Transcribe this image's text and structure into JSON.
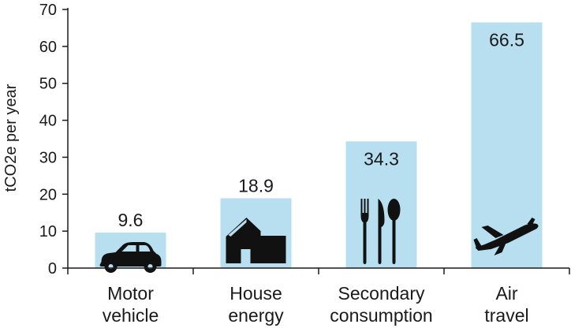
{
  "chart_data": {
    "type": "bar",
    "categories": [
      [
        "Motor",
        "vehicle"
      ],
      [
        "House",
        "energy"
      ],
      [
        "Secondary",
        "consumption"
      ],
      [
        "Air",
        "travel"
      ]
    ],
    "values": [
      9.6,
      18.9,
      34.3,
      66.5
    ],
    "value_labels": [
      "9.6",
      "18.9",
      "34.3",
      "66.5"
    ],
    "icons": [
      "car-icon",
      "house-icon",
      "cutlery-icon",
      "airplane-icon"
    ],
    "title": "",
    "xlabel": "",
    "ylabel": "tCO2e per year",
    "ylim": [
      0,
      70
    ],
    "yticks": [
      0,
      10,
      20,
      30,
      40,
      50,
      60,
      70
    ],
    "grid": false,
    "bar_color": "#b7dff0"
  }
}
